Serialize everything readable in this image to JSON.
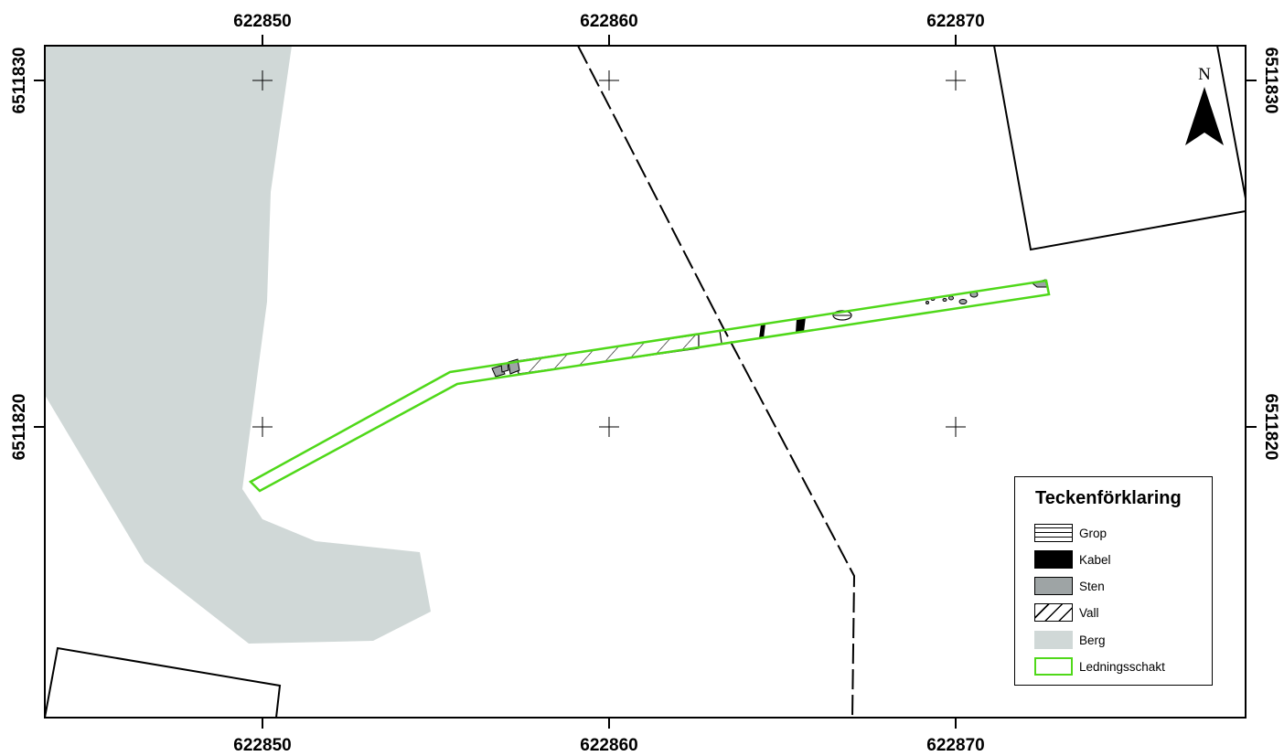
{
  "map": {
    "x_labels": {
      "top": [
        "622850",
        "622860",
        "622870"
      ],
      "bottom": [
        "622850",
        "622860",
        "622870"
      ]
    },
    "y_labels": {
      "left": [
        "6511830",
        "6511820"
      ],
      "right": [
        "6511830",
        "6511820"
      ]
    },
    "north_label": "N"
  },
  "legend": {
    "title": "Teckenförklaring",
    "items": [
      {
        "label": "Grop",
        "symbol": "horizontal-hatch"
      },
      {
        "label": "Kabel",
        "symbol": "solid-black",
        "color": "#000000"
      },
      {
        "label": "Sten",
        "symbol": "solid-grey",
        "color": "#9ea4a5"
      },
      {
        "label": "Vall",
        "symbol": "diagonal-hatch"
      },
      {
        "label": "Berg",
        "symbol": "solid-light-grey",
        "color": "#d0d8d7"
      },
      {
        "label": "Ledningsschakt",
        "symbol": "green-outline",
        "color": "#4fd819"
      }
    ]
  },
  "colors": {
    "berg": "#d0d8d7",
    "sten": "#9ea4a5",
    "schakt": "#4fd819",
    "frame": "#000000"
  }
}
